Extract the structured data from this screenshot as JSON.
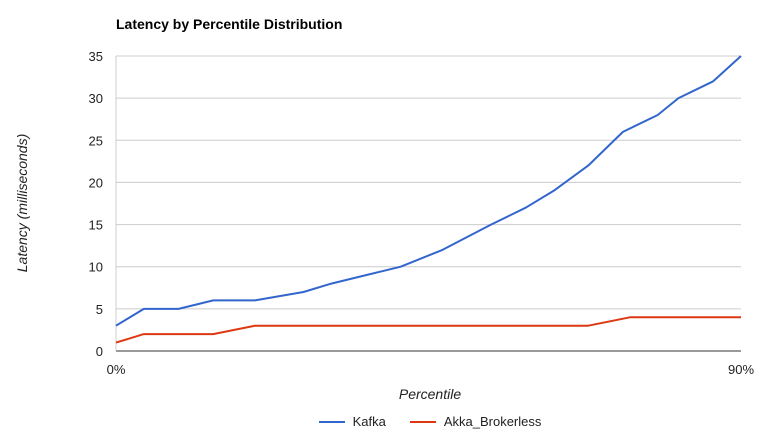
{
  "chart_data": {
    "type": "line",
    "title": "Latency by Percentile Distribution",
    "xlabel": "Percentile",
    "ylabel": "Latency (milliseconds)",
    "x_tick_labels": [
      "0%",
      "90%"
    ],
    "x_range": [
      0,
      90
    ],
    "ylim": [
      0,
      35
    ],
    "y_ticks": [
      0,
      5,
      10,
      15,
      20,
      25,
      30,
      35
    ],
    "grid": true,
    "legend_position": "bottom",
    "series": [
      {
        "name": "Kafka",
        "color": "#3366cc",
        "x": [
          0,
          4,
          9,
          14,
          20,
          27,
          31,
          36,
          41,
          47,
          54,
          59,
          63,
          68,
          73,
          78,
          81,
          86,
          90
        ],
        "y": [
          3,
          5,
          5,
          6,
          6,
          7,
          8,
          9,
          10,
          12,
          15,
          17,
          19,
          22,
          26,
          28,
          30,
          32,
          35
        ]
      },
      {
        "name": "Akka_Brokerless",
        "color": "#dc3912",
        "x": [
          0,
          4,
          14,
          20,
          68,
          74,
          90
        ],
        "y": [
          1,
          2,
          2,
          3,
          3,
          4,
          4
        ]
      }
    ]
  }
}
